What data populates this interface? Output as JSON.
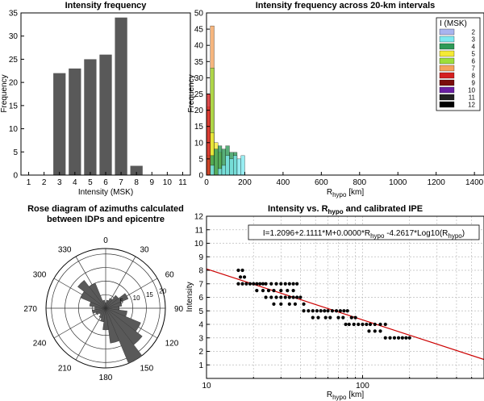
{
  "chart_data": [
    {
      "type": "bar",
      "title": "Intensity frequency",
      "xlabel": "Intensity (MSK)",
      "ylabel": "Frequency",
      "categories": [
        "1",
        "2",
        "3",
        "4",
        "5",
        "6",
        "7",
        "8",
        "9",
        "10",
        "11"
      ],
      "values": [
        0,
        0,
        22,
        23,
        25,
        26,
        34,
        2,
        0,
        0,
        0
      ],
      "ylim": [
        0,
        35
      ],
      "yticks": [
        "0",
        "5",
        "10",
        "15",
        "20",
        "25",
        "30",
        "35"
      ],
      "bar_color": "#595959"
    },
    {
      "type": "bar",
      "title": "Intensity frequency across 20-km intervals",
      "xlabel_main": "R",
      "xlabel_sub": "hypo",
      "xlabel_unit": "[km]",
      "ylabel": "Frequency",
      "xlim": [
        0,
        1450
      ],
      "ylim": [
        0,
        50
      ],
      "xticks": [
        "0",
        "200",
        "400",
        "600",
        "800",
        "1000",
        "1200",
        "1400"
      ],
      "yticks": [
        "0",
        "5",
        "10",
        "15",
        "20",
        "25",
        "30",
        "35",
        "40",
        "45",
        "50"
      ],
      "legend_title": "I (MSK)",
      "legend_position": "top-right",
      "series": [
        {
          "name": "2",
          "color": "#a9b4ee",
          "bars": []
        },
        {
          "name": "3",
          "color": "#7ee8ef",
          "bars": [
            {
              "x0": 20,
              "x1": 40,
              "v": 3
            },
            {
              "x0": 60,
              "x1": 80,
              "v": 2
            },
            {
              "x0": 80,
              "x1": 100,
              "v": 3
            },
            {
              "x0": 100,
              "x1": 120,
              "v": 6
            },
            {
              "x0": 120,
              "x1": 140,
              "v": 5
            },
            {
              "x0": 140,
              "x1": 160,
              "v": 6
            },
            {
              "x0": 160,
              "x1": 180,
              "v": 5
            },
            {
              "x0": 180,
              "x1": 200,
              "v": 6
            }
          ]
        },
        {
          "name": "4",
          "color": "#2e9a57",
          "bars": [
            {
              "x0": 20,
              "x1": 40,
              "v": 6
            },
            {
              "x0": 40,
              "x1": 60,
              "v": 8
            },
            {
              "x0": 60,
              "x1": 80,
              "v": 9
            },
            {
              "x0": 80,
              "x1": 100,
              "v": 8
            },
            {
              "x0": 100,
              "x1": 120,
              "v": 9
            },
            {
              "x0": 120,
              "x1": 140,
              "v": 7
            },
            {
              "x0": 140,
              "x1": 160,
              "v": 7
            }
          ]
        },
        {
          "name": "5",
          "color": "#f4ea36",
          "bars": [
            {
              "x0": 20,
              "x1": 40,
              "v": 13
            },
            {
              "x0": 40,
              "x1": 60,
              "v": 10
            },
            {
              "x0": 60,
              "x1": 80,
              "v": 7
            }
          ]
        },
        {
          "name": "6",
          "color": "#9cde3b",
          "bars": [
            {
              "x0": 0,
              "x1": 20,
              "v": 6
            },
            {
              "x0": 20,
              "x1": 40,
              "v": 33
            }
          ]
        },
        {
          "name": "7",
          "color": "#f4a25c",
          "bars": [
            {
              "x0": 0,
              "x1": 20,
              "v": 21
            },
            {
              "x0": 20,
              "x1": 40,
              "v": 46
            }
          ]
        },
        {
          "name": "8",
          "color": "#d42020",
          "bars": [
            {
              "x0": 0,
              "x1": 20,
              "v": 25
            }
          ]
        },
        {
          "name": "9",
          "color": "#7a0c0c",
          "bars": []
        },
        {
          "name": "10",
          "color": "#6a1fa3",
          "bars": []
        },
        {
          "name": "11",
          "color": "#222222",
          "bars": []
        },
        {
          "name": "12",
          "color": "#000000",
          "bars": []
        }
      ]
    },
    {
      "type": "rose",
      "title_line1": "Rose diagram of azimuths calculated",
      "title_line2": "between  IDPs and epicentre",
      "angle_labels": [
        "0",
        "30",
        "60",
        "90",
        "120",
        "150",
        "180",
        "210",
        "240",
        "270",
        "300",
        "330"
      ],
      "radial_ticks": [
        "5",
        "10",
        "15",
        "20"
      ],
      "rmax": 22,
      "bin_width_deg": 15,
      "petals": [
        {
          "az": 0,
          "r": 2
        },
        {
          "az": 15,
          "r": 3
        },
        {
          "az": 30,
          "r": 4
        },
        {
          "az": 45,
          "r": 6
        },
        {
          "az": 60,
          "r": 9
        },
        {
          "az": 75,
          "r": 6
        },
        {
          "az": 90,
          "r": 5
        },
        {
          "az": 105,
          "r": 8
        },
        {
          "az": 120,
          "r": 14
        },
        {
          "az": 135,
          "r": 17
        },
        {
          "az": 150,
          "r": 22
        },
        {
          "az": 165,
          "r": 13
        },
        {
          "az": 180,
          "r": 8
        },
        {
          "az": 195,
          "r": 5
        },
        {
          "az": 210,
          "r": 4
        },
        {
          "az": 225,
          "r": 3
        },
        {
          "az": 240,
          "r": 4
        },
        {
          "az": 255,
          "r": 5
        },
        {
          "az": 270,
          "r": 4
        },
        {
          "az": 285,
          "r": 6
        },
        {
          "az": 300,
          "r": 10
        },
        {
          "az": 315,
          "r": 13
        },
        {
          "az": 330,
          "r": 10
        },
        {
          "az": 345,
          "r": 3
        }
      ],
      "color": "#595959"
    },
    {
      "type": "scatter",
      "title_main": "Intensity vs. R",
      "title_sub": "hypo",
      "title_rest": " and calibrated IPE",
      "xlabel_main": "R",
      "xlabel_sub": "hypo",
      "xlabel_unit": "[km]",
      "ylabel": "Intensity",
      "xscale": "log",
      "xlim": [
        10,
        600
      ],
      "ylim": [
        0,
        12
      ],
      "xticks": [
        "10",
        "100"
      ],
      "yticks": [
        "1",
        "2",
        "3",
        "4",
        "5",
        "6",
        "7",
        "8",
        "9",
        "10",
        "11",
        "12"
      ],
      "equation_text": "I=1.2096+2.1111*M+0.0000*R",
      "equation_sub": "hypo",
      "equation_mid": " -4.2617*Log10(R",
      "equation_sub2": "hypo",
      "equation_end": ")",
      "line": {
        "x": [
          10,
          600
        ],
        "y": [
          8.1,
          1.4
        ],
        "color": "#cc0000"
      },
      "points": [
        [
          16,
          8
        ],
        [
          17,
          8
        ],
        [
          16.5,
          7.5
        ],
        [
          17.5,
          7.5
        ],
        [
          16,
          7
        ],
        [
          17,
          7
        ],
        [
          18,
          7
        ],
        [
          19,
          7
        ],
        [
          20,
          7
        ],
        [
          21,
          7
        ],
        [
          22,
          7
        ],
        [
          23,
          7
        ],
        [
          24,
          7
        ],
        [
          26,
          7
        ],
        [
          28,
          7
        ],
        [
          30,
          7
        ],
        [
          32,
          7
        ],
        [
          34,
          7
        ],
        [
          36,
          7
        ],
        [
          38,
          7
        ],
        [
          21,
          6.5
        ],
        [
          23,
          6.5
        ],
        [
          25,
          6.5
        ],
        [
          27,
          6.5
        ],
        [
          30,
          6.5
        ],
        [
          33,
          6.5
        ],
        [
          36,
          6.5
        ],
        [
          24,
          6
        ],
        [
          26,
          6
        ],
        [
          28,
          6
        ],
        [
          30,
          6
        ],
        [
          32,
          6
        ],
        [
          34,
          6
        ],
        [
          36,
          6
        ],
        [
          38,
          6
        ],
        [
          40,
          6
        ],
        [
          27,
          5.5
        ],
        [
          30,
          5.5
        ],
        [
          34,
          5.5
        ],
        [
          37,
          5.5
        ],
        [
          42,
          5.5
        ],
        [
          42,
          5
        ],
        [
          45,
          5
        ],
        [
          48,
          5
        ],
        [
          51,
          5
        ],
        [
          54,
          5
        ],
        [
          57,
          5
        ],
        [
          60,
          5
        ],
        [
          64,
          5
        ],
        [
          68,
          5
        ],
        [
          72,
          5
        ],
        [
          76,
          5
        ],
        [
          80,
          5
        ],
        [
          48,
          4.5
        ],
        [
          52,
          4.5
        ],
        [
          58,
          4.5
        ],
        [
          62,
          4.5
        ],
        [
          70,
          4.5
        ],
        [
          75,
          4.5
        ],
        [
          85,
          4.5
        ],
        [
          90,
          4.5
        ],
        [
          78,
          4
        ],
        [
          82,
          4
        ],
        [
          88,
          4
        ],
        [
          94,
          4
        ],
        [
          100,
          4
        ],
        [
          106,
          4
        ],
        [
          112,
          4
        ],
        [
          120,
          4
        ],
        [
          130,
          4
        ],
        [
          140,
          4
        ],
        [
          110,
          3.5
        ],
        [
          120,
          3.5
        ],
        [
          130,
          3.5
        ],
        [
          140,
          3
        ],
        [
          150,
          3
        ],
        [
          160,
          3
        ],
        [
          170,
          3
        ],
        [
          180,
          3
        ],
        [
          190,
          3
        ],
        [
          200,
          3
        ]
      ]
    }
  ]
}
